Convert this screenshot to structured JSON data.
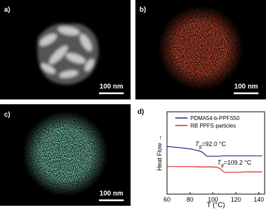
{
  "panels": [
    {
      "label": "a)",
      "scale_bar": "100 nm"
    },
    {
      "label": "b)",
      "scale_bar": "100 nm"
    },
    {
      "label": "c)",
      "scale_bar": "100 nm"
    },
    {
      "label": "d)"
    }
  ],
  "chart_data": {
    "type": "line",
    "x_label": "T (°C)",
    "y_label": "Heat Flow →",
    "x": [
      60,
      70,
      80,
      85,
      88,
      90,
      92,
      94,
      96,
      100,
      104,
      106,
      108,
      110,
      120,
      130,
      140,
      143
    ],
    "series": [
      {
        "name": "RB PPFS particles",
        "color": "#e02020",
        "values": [
          3.35,
          3.35,
          3.35,
          3.3,
          3.3,
          3.3,
          3.3,
          3.3,
          3.3,
          3.3,
          3.25,
          3.1,
          2.85,
          2.65,
          2.65,
          2.7,
          2.7,
          2.7
        ]
      },
      {
        "name": "PDMA54-b-PPFS50",
        "color": "#1a237e",
        "values": [
          5.8,
          5.65,
          5.5,
          5.35,
          5.25,
          5.15,
          4.95,
          4.65,
          4.6,
          4.6,
          4.6,
          4.6,
          4.65,
          4.65,
          4.65,
          4.65,
          4.65,
          4.65
        ]
      }
    ],
    "annotations": [
      {
        "symbol": "T",
        "subscript": "g",
        "text": "=92.0 °C"
      },
      {
        "symbol": "T",
        "subscript": "g",
        "text": "=109.2 °C"
      }
    ],
    "xlim": [
      60,
      145
    ],
    "ylim": [
      0,
      10
    ],
    "xticks": [
      60,
      80,
      100,
      120,
      140
    ]
  }
}
